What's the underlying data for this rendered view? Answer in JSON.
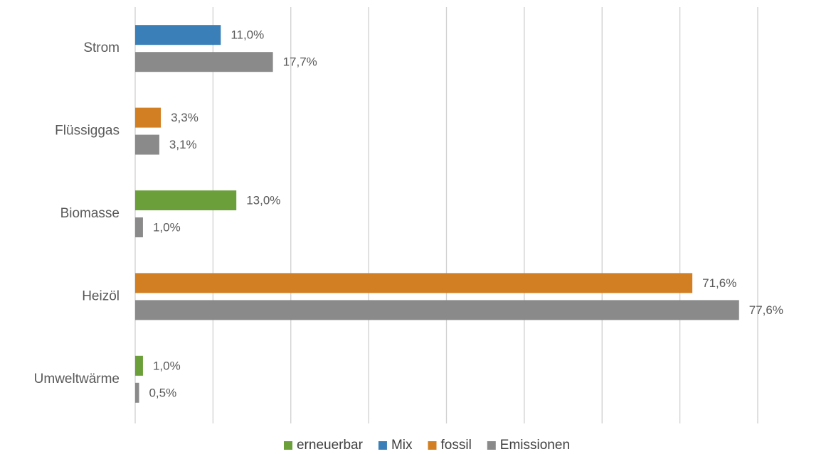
{
  "chart_data": {
    "type": "hbar_grouped",
    "categories": [
      "Strom",
      "Flüssiggas",
      "Biomasse",
      "Heizöl",
      "Umweltwärme"
    ],
    "series": [
      {
        "name": "erneuerbar",
        "color": "#6a9f3a",
        "values": [
          null,
          null,
          13.0,
          null,
          1.0
        ],
        "value_labels": [
          null,
          null,
          "13,0%",
          null,
          "1,0%"
        ]
      },
      {
        "name": "Mix",
        "color": "#3b7fb8",
        "values": [
          11.0,
          null,
          null,
          null,
          null
        ],
        "value_labels": [
          "11,0%",
          null,
          null,
          null,
          null
        ]
      },
      {
        "name": "fossil",
        "color": "#d17f22",
        "values": [
          null,
          3.3,
          null,
          71.6,
          null
        ],
        "value_labels": [
          null,
          "3,3%",
          null,
          "71,6%",
          null
        ]
      },
      {
        "name": "Emissionen",
        "color": "#8a8a8a",
        "values": [
          17.7,
          3.1,
          1.0,
          77.6,
          0.5
        ],
        "value_labels": [
          "17,7%",
          "3,1%",
          "1,0%",
          "77,6%",
          "0,5%"
        ]
      }
    ],
    "xlim": [
      0,
      80
    ],
    "xticks": [
      0,
      10,
      20,
      30,
      40,
      50,
      60,
      70,
      80
    ],
    "grid": true,
    "legend": "bottom"
  }
}
